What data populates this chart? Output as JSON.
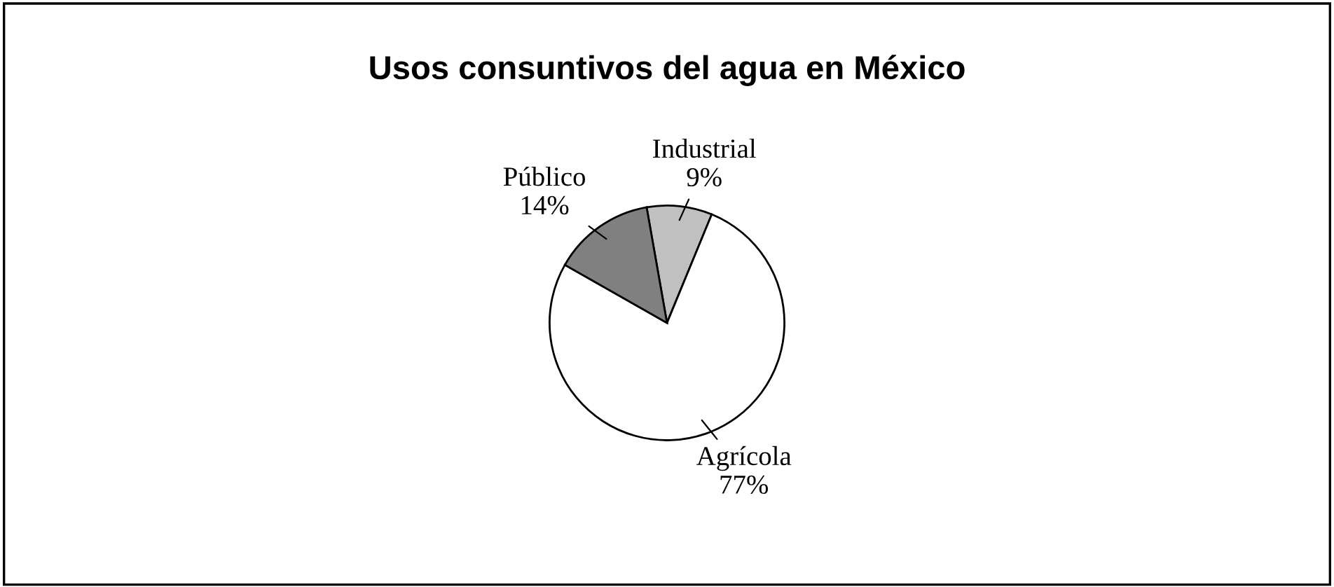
{
  "chart_data": {
    "type": "pie",
    "title": "Usos consuntivos del agua en México",
    "categories": [
      "Industrial",
      "Agrícola",
      "Público"
    ],
    "values": [
      9,
      77,
      14
    ],
    "value_labels": [
      "9%",
      "77%",
      "14%"
    ],
    "colors": [
      "#c0c0c0",
      "#ffffff",
      "#808080"
    ],
    "legend": false
  }
}
